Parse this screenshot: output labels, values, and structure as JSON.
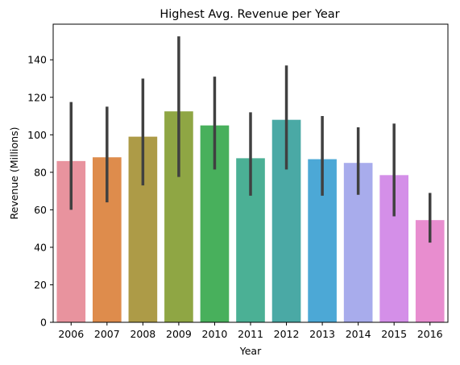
{
  "chart_data": {
    "type": "bar",
    "title": "Highest Avg. Revenue per Year",
    "xlabel": "Year",
    "ylabel": "Revenue (Millions)",
    "categories": [
      "2006",
      "2007",
      "2008",
      "2009",
      "2010",
      "2011",
      "2012",
      "2013",
      "2014",
      "2015",
      "2016"
    ],
    "values": [
      86,
      88,
      99,
      112.5,
      105,
      87.5,
      108,
      87,
      85,
      78.5,
      54.5
    ],
    "error_low": [
      60,
      64,
      73,
      77.5,
      81.5,
      67.5,
      81.5,
      67.5,
      68,
      56.5,
      42.5
    ],
    "error_high": [
      117.5,
      115,
      130,
      152.5,
      131,
      112,
      137,
      110,
      104,
      106,
      69
    ],
    "colors": [
      "#e8939e",
      "#de8c4c",
      "#ad9b47",
      "#8fa644",
      "#48b05c",
      "#4bb095",
      "#4aa9a5",
      "#4ca8d6",
      "#a8acec",
      "#d48fe8",
      "#e88dcf"
    ],
    "error_color": "#404040",
    "ylim": [
      0,
      159
    ],
    "yticks": [
      0,
      20,
      40,
      60,
      80,
      100,
      120,
      140
    ],
    "grid": false,
    "legend": "none"
  }
}
